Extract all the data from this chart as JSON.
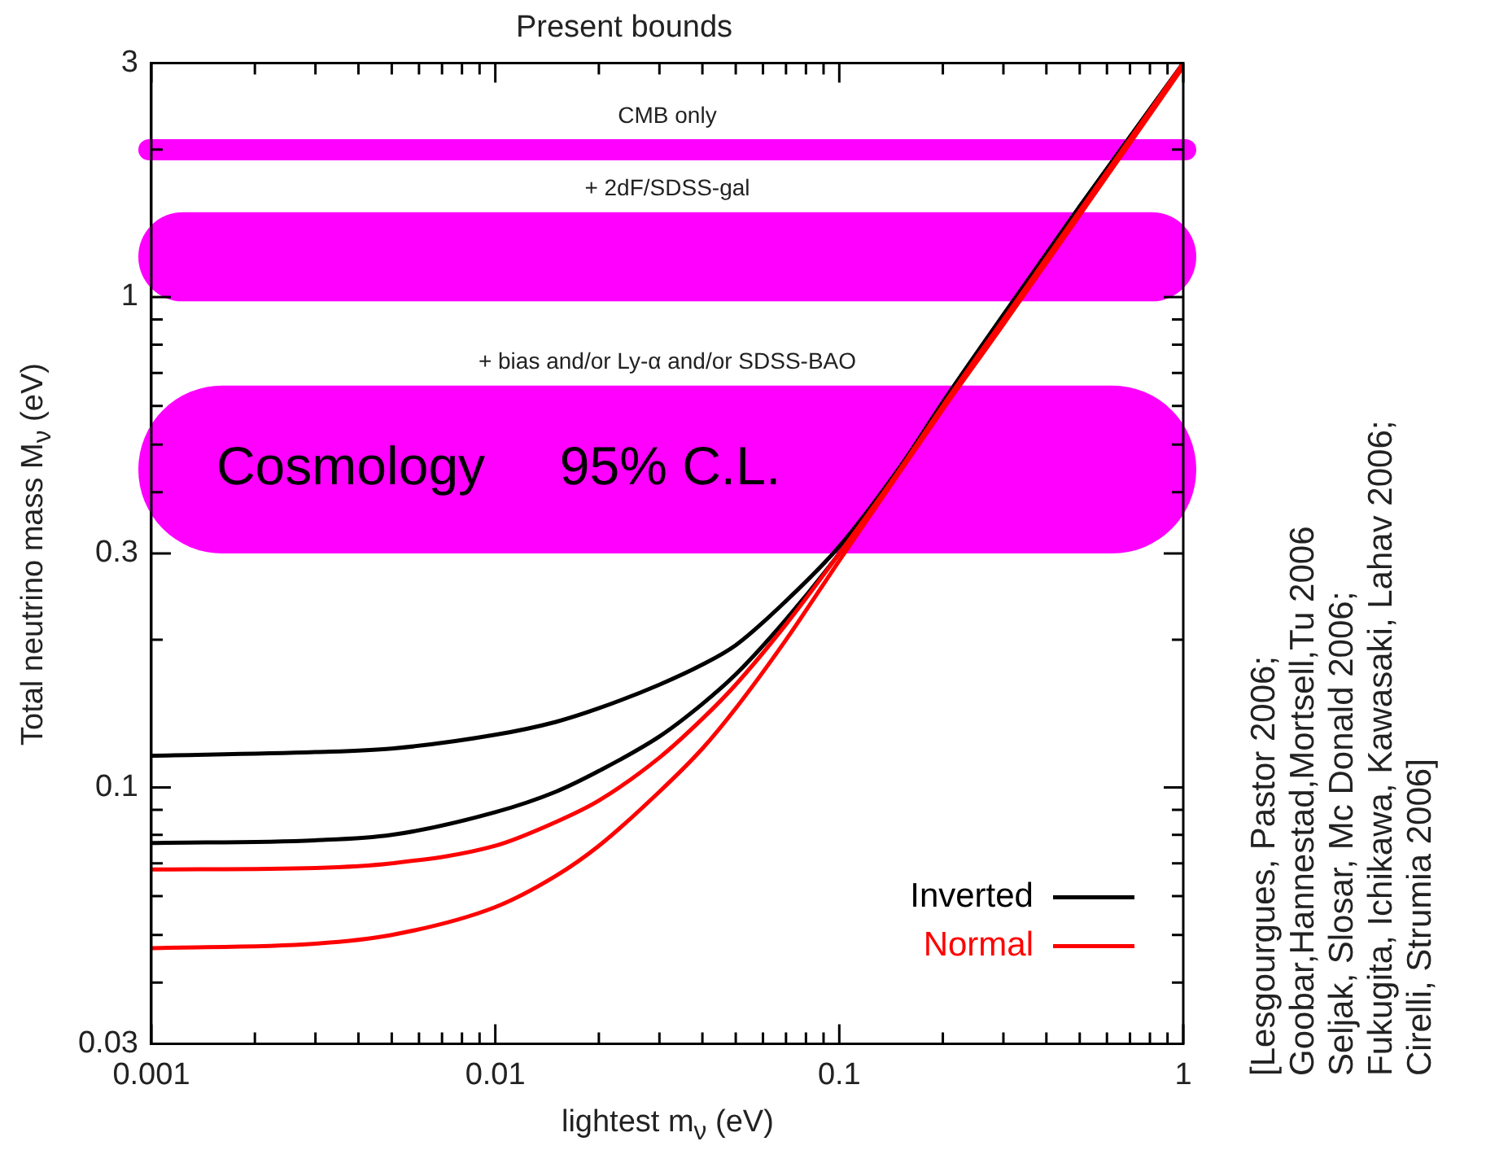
{
  "chart_data": {
    "type": "line",
    "title": "Present bounds",
    "xlabel": "lightest m$_{ν}$ (eV)",
    "ylabel": "Total neutrino mass M$_{ν}$ (eV)",
    "log": "xy",
    "grid": false,
    "legend": "bottom right",
    "line_style": "solid",
    "marker": "none",
    "xlim": [
      0.001,
      1
    ],
    "ylim": [
      0.03,
      3
    ],
    "xticks": [
      0.001,
      {
        "value": 0.002,
        "label": null
      },
      {
        "value": 0.003,
        "label": null
      },
      {
        "value": 0.004,
        "label": null
      },
      {
        "value": 0.005,
        "label": null
      },
      {
        "value": 0.006,
        "label": null
      },
      {
        "value": 0.007,
        "label": null
      },
      {
        "value": 0.008,
        "label": null
      },
      {
        "value": 0.009,
        "label": null
      },
      0.01,
      {
        "value": 0.02,
        "label": null
      },
      {
        "value": 0.03,
        "label": null
      },
      {
        "value": 0.04,
        "label": null
      },
      {
        "value": 0.05,
        "label": null
      },
      {
        "value": 0.06,
        "label": null
      },
      {
        "value": 0.07,
        "label": null
      },
      {
        "value": 0.08,
        "label": null
      },
      {
        "value": 0.09,
        "label": null
      },
      0.1,
      {
        "value": 0.2,
        "label": null
      },
      {
        "value": 0.3,
        "label": null
      },
      {
        "value": 0.4,
        "label": null
      },
      {
        "value": 0.5,
        "label": null
      },
      {
        "value": 0.6,
        "label": null
      },
      {
        "value": 0.7,
        "label": null
      },
      {
        "value": 0.8,
        "label": null
      },
      {
        "value": 0.9,
        "label": null
      },
      1
    ],
    "yticks": [
      0.03,
      {
        "value": 0.04,
        "label": null
      },
      {
        "value": 0.05,
        "label": null
      },
      {
        "value": 0.06,
        "label": null
      },
      {
        "value": 0.07,
        "label": null
      },
      {
        "value": 0.08,
        "label": null
      },
      {
        "value": 0.09,
        "label": null
      },
      0.1,
      {
        "value": 0.2,
        "label": null
      },
      0.3,
      {
        "value": 0.4,
        "label": null
      },
      {
        "value": 0.5,
        "label": null
      },
      {
        "value": 0.6,
        "label": null
      },
      {
        "value": 0.7,
        "label": null
      },
      {
        "value": 0.8,
        "label": null
      },
      {
        "value": 0.9,
        "label": null
      },
      1,
      {
        "value": 2,
        "label": null
      },
      3
    ],
    "series": [
      {
        "name": "Inverted",
        "color": "#000000",
        "x": [
          0.001,
          0.003,
          0.005,
          0.01,
          0.015,
          0.02,
          0.03,
          0.04,
          0.05,
          0.07,
          0.1,
          0.15,
          0.2,
          0.3,
          0.5,
          1
        ],
        "values": [
          0.116,
          0.118,
          0.12,
          0.128,
          0.136,
          0.145,
          0.162,
          0.178,
          0.195,
          0.24,
          0.31,
          0.45,
          0.61,
          0.92,
          1.53,
          3
        ]
      },
      {
        "color": "#000000",
        "x": [
          0.001,
          0.003,
          0.005,
          0.01,
          0.015,
          0.02,
          0.03,
          0.04,
          0.05,
          0.07,
          0.1,
          0.15,
          0.2,
          0.3,
          0.5,
          1
        ],
        "values": [
          0.077,
          0.078,
          0.08,
          0.089,
          0.098,
          0.108,
          0.127,
          0.148,
          0.17,
          0.22,
          0.3,
          0.445,
          0.61,
          0.92,
          1.53,
          3
        ]
      },
      {
        "name": "Normal",
        "color": "#ff0000",
        "x": [
          0.001,
          0.003,
          0.005,
          0.01,
          0.015,
          0.02,
          0.03,
          0.04,
          0.05,
          0.07,
          0.1,
          0.15,
          0.2,
          0.3,
          0.5,
          1
        ],
        "values": [
          0.068,
          0.0685,
          0.07,
          0.076,
          0.085,
          0.094,
          0.115,
          0.138,
          0.162,
          0.215,
          0.3,
          0.445,
          0.6,
          0.9,
          1.5,
          3
        ]
      },
      {
        "color": "#ff0000",
        "x": [
          0.001,
          0.003,
          0.005,
          0.01,
          0.015,
          0.02,
          0.03,
          0.04,
          0.05,
          0.07,
          0.1,
          0.15,
          0.2,
          0.3,
          0.5,
          1
        ],
        "values": [
          0.047,
          0.048,
          0.05,
          0.057,
          0.066,
          0.076,
          0.098,
          0.12,
          0.145,
          0.2,
          0.29,
          0.44,
          0.59,
          0.88,
          1.47,
          2.95
        ]
      }
    ],
    "bands": [
      {
        "axis": "y",
        "from": 1.9,
        "to": 2.1,
        "label": "CMB only",
        "color": "#ff00ff"
      },
      {
        "axis": "y",
        "from": 0.98,
        "to": 1.49,
        "label": "+ 2dF/SDSS-gal",
        "color": "#ff00ff"
      },
      {
        "axis": "y",
        "from": 0.3,
        "to": 0.66,
        "label": "+ bias and/or Ly-α and/or SDSS-BAO",
        "color": "#ff00ff"
      }
    ],
    "annotations": [
      "Cosmology     95% C.L.",
      "[Lesgourgues, Pastor 2006;\nGoobar,Hannestad,Mortsell,Tu 2006\nSeljak, Slosar, Mc Donald 2006;\nFukugita, Ichikawa, Kawasaki, Lahav 2006;\nCirelli, Strumia 2006]"
    ]
  }
}
